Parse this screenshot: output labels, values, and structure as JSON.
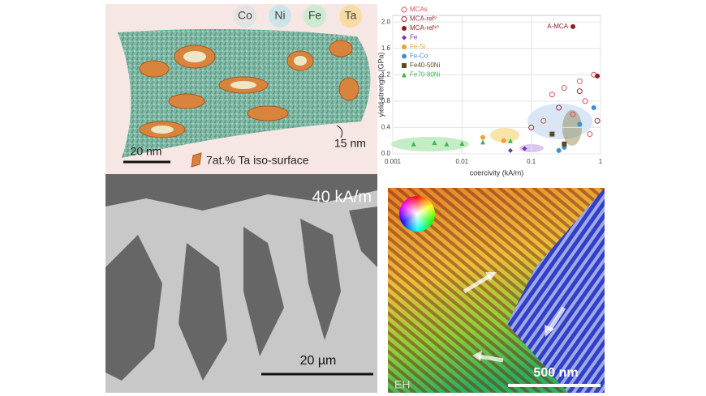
{
  "panels": {
    "apt": {
      "elements": [
        "Co",
        "Ni",
        "Fe",
        "Ta"
      ],
      "length_label": "15 nm",
      "scale_bar": "20 nm",
      "legend": "7at.% Ta iso-surface"
    },
    "domains": {
      "field": "40 kA/m",
      "scale_bar": "20 µm"
    },
    "holography": {
      "scale_bar": "500 nm",
      "label": "EH"
    }
  },
  "chart_data": {
    "type": "scatter",
    "xlabel": "coercivity (kA/m)",
    "ylabel": "yield strength (GPa)",
    "xscale": "log",
    "xlim": [
      0.001,
      1
    ],
    "xticks": [
      0.001,
      0.01,
      0.1,
      1
    ],
    "ylim": [
      0,
      2.1
    ],
    "yticks": [
      {
        "value": 0,
        "label": "0.0"
      },
      {
        "value": 0.4,
        "label": "0.4"
      },
      {
        "value": 0.8,
        "label": "0.8"
      },
      {
        "value": 1.2,
        "label": "1.2"
      },
      {
        "value": 1.6,
        "label": "1.6"
      },
      {
        "value": 2.0,
        "label": "2.0"
      }
    ],
    "grid": true,
    "legend_location": "upper left",
    "annotation": "A-MCA",
    "series": [
      {
        "name": "MCAs",
        "color": "#e0505a",
        "marker": "open-circle",
        "x": [
          0.15,
          0.2,
          0.3,
          0.4,
          0.5,
          0.6,
          0.7,
          0.8
        ],
        "values": [
          0.5,
          0.9,
          1.0,
          0.6,
          1.1,
          0.8,
          0.3,
          1.2
        ]
      },
      {
        "name": "MCA-ref⁹",
        "color": "#9c2a3c",
        "marker": "open-circle",
        "x": [
          0.1,
          0.25,
          0.5,
          0.9
        ],
        "values": [
          0.4,
          0.7,
          0.95,
          0.5
        ]
      },
      {
        "name": "MCA-ref¹⁰",
        "color": "#8b1e1e",
        "marker": "circle",
        "x": [
          0.4,
          0.9
        ],
        "values": [
          1.93,
          1.18
        ]
      },
      {
        "name": "Fe",
        "color": "#7a2fb8",
        "marker": "diamond",
        "x": [
          0.05,
          0.08
        ],
        "values": [
          0.05,
          0.08
        ]
      },
      {
        "name": "Fe-Si",
        "color": "#f0a030",
        "marker": "circle",
        "x": [
          0.02,
          0.04
        ],
        "values": [
          0.25,
          0.2
        ]
      },
      {
        "name": "Fe-Co",
        "color": "#3d8fd8",
        "marker": "circle",
        "x": [
          0.25,
          0.3,
          0.5,
          0.8
        ],
        "values": [
          0.05,
          0.1,
          0.45,
          0.7
        ]
      },
      {
        "name": "Fe40-50Ni",
        "color": "#5a4a1e",
        "marker": "square",
        "x": [
          0.2,
          0.3
        ],
        "values": [
          0.3,
          0.15
        ]
      },
      {
        "name": "Fe70-80Ni",
        "color": "#3cb84a",
        "marker": "triangle",
        "x": [
          0.002,
          0.004,
          0.006,
          0.01,
          0.02,
          0.05
        ],
        "values": [
          0.15,
          0.17,
          0.15,
          0.16,
          0.18,
          0.2
        ]
      }
    ]
  }
}
